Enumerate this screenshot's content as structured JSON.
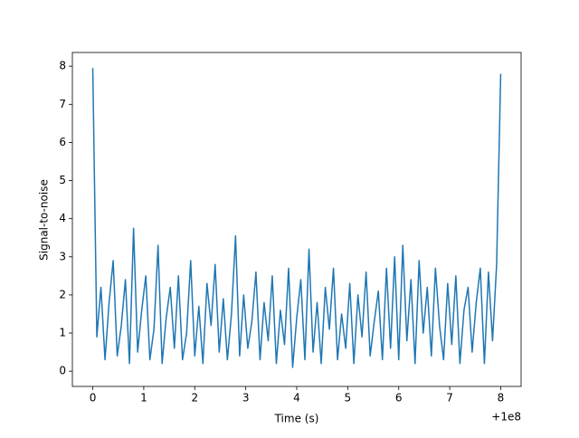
{
  "chart_data": {
    "type": "line",
    "xlabel": "Time (s)",
    "ylabel": "Signal-to-noise",
    "x_offset_label": "+1e8",
    "x": [
      0,
      0.08,
      0.16,
      0.24,
      0.32,
      0.4,
      0.48,
      0.56,
      0.64,
      0.72,
      0.8,
      0.88,
      0.96,
      1.04,
      1.12,
      1.2,
      1.28,
      1.36,
      1.44,
      1.52,
      1.6,
      1.68,
      1.76,
      1.84,
      1.92,
      2,
      2.08,
      2.16,
      2.24,
      2.32,
      2.4,
      2.48,
      2.56,
      2.64,
      2.72,
      2.8,
      2.88,
      2.96,
      3.04,
      3.12,
      3.2,
      3.28,
      3.36,
      3.44,
      3.52,
      3.6,
      3.68,
      3.76,
      3.84,
      3.92,
      4,
      4.08,
      4.16,
      4.24,
      4.32,
      4.4,
      4.48,
      4.56,
      4.64,
      4.72,
      4.8,
      4.88,
      4.96,
      5.04,
      5.12,
      5.2,
      5.28,
      5.36,
      5.44,
      5.52,
      5.6,
      5.68,
      5.76,
      5.84,
      5.92,
      6,
      6.08,
      6.16,
      6.24,
      6.32,
      6.4,
      6.48,
      6.56,
      6.64,
      6.72,
      6.8,
      6.88,
      6.96,
      7.04,
      7.12,
      7.2,
      7.28,
      7.36,
      7.44,
      7.52,
      7.6,
      7.68,
      7.76,
      7.84,
      7.92,
      8
    ],
    "series": [
      {
        "color": "#1f77b4",
        "values": [
          7.95,
          0.9,
          2.2,
          0.3,
          1.8,
          2.9,
          0.4,
          1.2,
          2.4,
          0.2,
          3.75,
          0.5,
          1.6,
          2.5,
          0.3,
          1.1,
          3.3,
          0.2,
          1.4,
          2.2,
          0.6,
          2.5,
          0.3,
          1.0,
          2.9,
          0.4,
          1.7,
          0.2,
          2.3,
          1.2,
          2.8,
          0.5,
          1.9,
          0.3,
          1.5,
          3.55,
          0.4,
          2.0,
          0.6,
          1.3,
          2.6,
          0.3,
          1.8,
          0.8,
          2.5,
          0.2,
          1.6,
          0.7,
          2.7,
          0.1,
          1.4,
          2.4,
          0.3,
          3.2,
          0.5,
          1.8,
          0.2,
          2.2,
          1.1,
          2.7,
          0.3,
          1.5,
          0.6,
          2.3,
          0.2,
          2.0,
          0.9,
          2.6,
          0.4,
          1.3,
          2.1,
          0.3,
          2.7,
          0.6,
          3.0,
          0.3,
          3.3,
          0.8,
          2.4,
          0.2,
          2.9,
          1.0,
          2.2,
          0.4,
          2.7,
          1.2,
          0.3,
          2.3,
          0.7,
          2.5,
          0.2,
          1.6,
          2.2,
          0.5,
          1.8,
          2.7,
          0.2,
          2.6,
          0.8,
          2.8,
          7.8
        ]
      }
    ],
    "xlim": [
      -0.4,
      8.4
    ],
    "xticks": [
      0,
      1,
      2,
      3,
      4,
      5,
      6,
      7,
      8
    ],
    "ylim": [
      -0.4,
      8.36
    ],
    "yticks": [
      0,
      1,
      2,
      3,
      4,
      5,
      6,
      7,
      8
    ]
  }
}
